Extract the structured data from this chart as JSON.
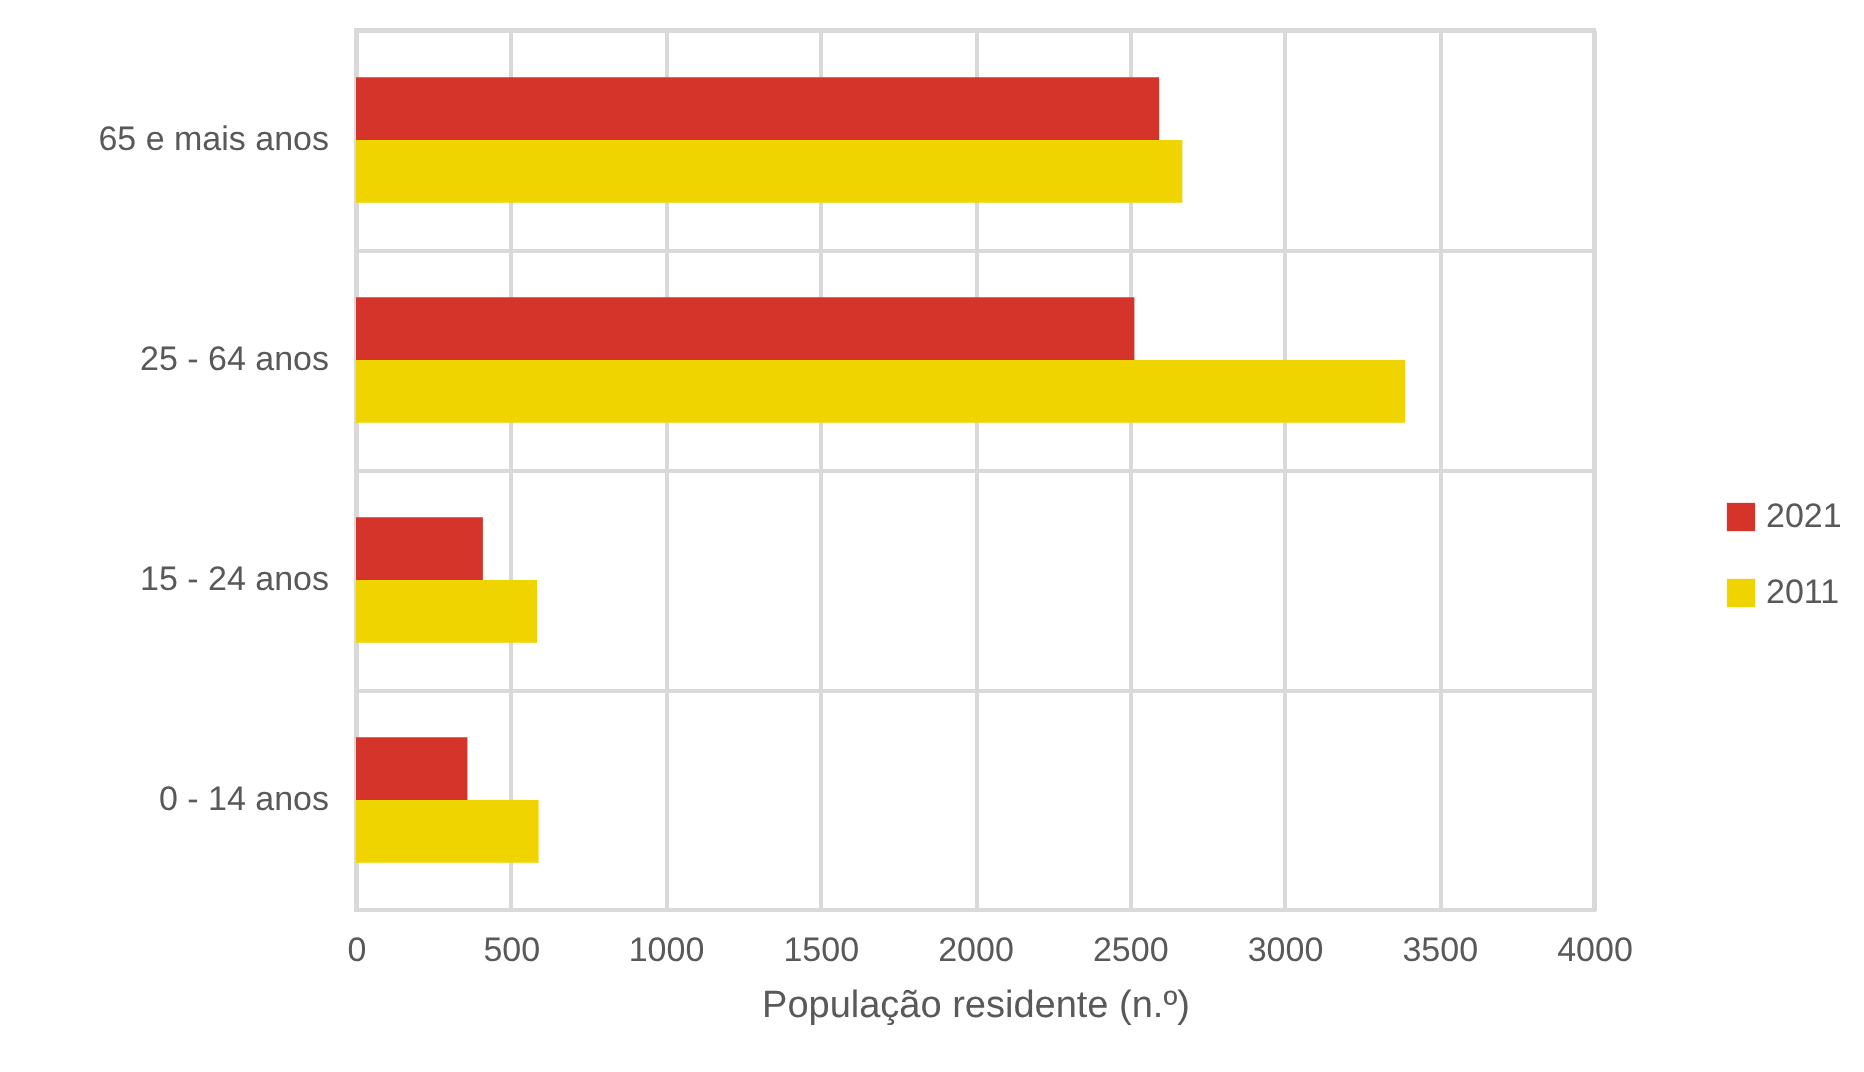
{
  "chart_data": {
    "type": "bar",
    "orientation": "horizontal",
    "xlabel": "População residente (n.º)",
    "categories": [
      "65 e mais anos",
      "25 - 64 anos",
      "15 - 24 anos",
      "0 - 14 anos"
    ],
    "series": [
      {
        "name": "2021",
        "color": "#d5342b",
        "values": [
          2595,
          2515,
          410,
          360
        ]
      },
      {
        "name": "2011",
        "color": "#f0d400",
        "values": [
          2670,
          3390,
          585,
          590
        ]
      }
    ],
    "xlim": [
      0,
      4000
    ],
    "xticks": [
      0,
      500,
      1000,
      1500,
      2000,
      2500,
      3000,
      3500,
      4000
    ],
    "grid": true,
    "legend": "right"
  }
}
